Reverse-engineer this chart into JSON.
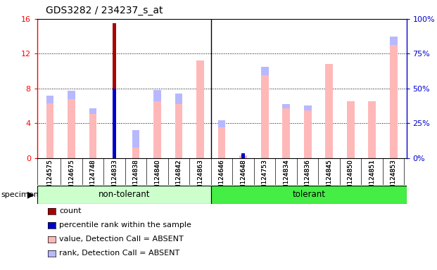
{
  "title": "GDS3282 / 234237_s_at",
  "samples": [
    "GSM124575",
    "GSM124675",
    "GSM124748",
    "GSM124833",
    "GSM124838",
    "GSM124840",
    "GSM124842",
    "GSM124863",
    "GSM124646",
    "GSM124648",
    "GSM124753",
    "GSM124834",
    "GSM124836",
    "GSM124845",
    "GSM124850",
    "GSM124851",
    "GSM124853"
  ],
  "n_nontolerant": 8,
  "value_absent": [
    6.3,
    6.8,
    5.1,
    0.0,
    1.2,
    6.5,
    6.2,
    11.2,
    3.5,
    0.3,
    9.5,
    5.7,
    5.5,
    10.8,
    6.5,
    6.5,
    13.0
  ],
  "rank_absent": [
    0.9,
    0.9,
    0.6,
    0.0,
    2.0,
    1.3,
    1.2,
    0.0,
    0.8,
    0.0,
    1.0,
    0.5,
    0.5,
    0.0,
    0.0,
    0.0,
    1.0
  ],
  "count_value": [
    0.0,
    0.0,
    0.0,
    15.5,
    0.0,
    0.0,
    0.0,
    0.0,
    0.0,
    0.25,
    0.0,
    0.0,
    0.0,
    0.0,
    0.0,
    0.0,
    0.0
  ],
  "percentile_rank": [
    0.0,
    0.0,
    0.0,
    8.0,
    0.0,
    0.0,
    0.0,
    0.0,
    0.0,
    0.5,
    0.0,
    0.0,
    0.0,
    0.0,
    0.0,
    0.0,
    0.0
  ],
  "ylim_left": [
    0,
    16
  ],
  "ylim_right": [
    0,
    100
  ],
  "yticks_left": [
    0,
    4,
    8,
    12,
    16
  ],
  "yticks_right": [
    0,
    25,
    50,
    75,
    100
  ],
  "color_value_absent": "#ffb8b8",
  "color_rank_absent": "#b8b8ff",
  "color_count": "#aa0000",
  "color_percentile": "#0000cc",
  "color_nontolerant_bg": "#ccffcc",
  "color_tolerant_bg": "#44ee44",
  "bar_width": 0.35,
  "right_y_color": "#0000cc",
  "legend_labels": [
    "count",
    "percentile rank within the sample",
    "value, Detection Call = ABSENT",
    "rank, Detection Call = ABSENT"
  ]
}
